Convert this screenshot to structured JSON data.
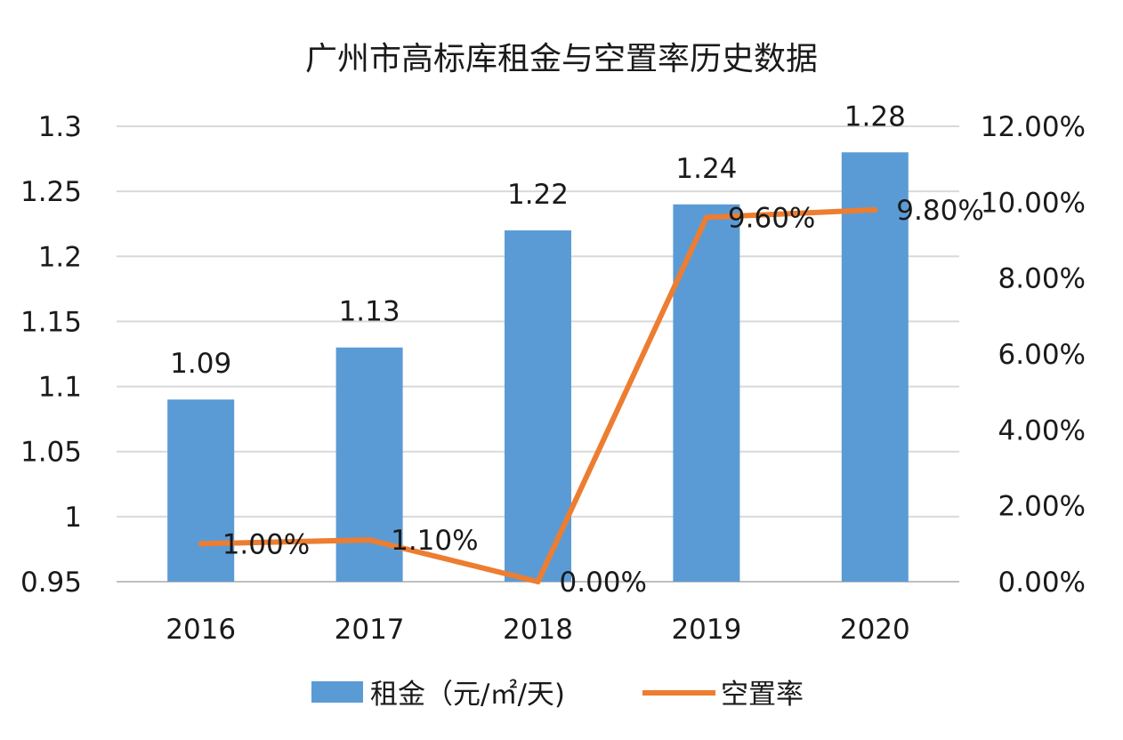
{
  "chart_data": {
    "type": "bar+line",
    "title": "广州市高标库租金与空置率历史数据",
    "categories": [
      "2016",
      "2017",
      "2018",
      "2019",
      "2020"
    ],
    "series": [
      {
        "name": "租金（元/㎡/天)",
        "type": "bar",
        "axis": "left",
        "values": [
          1.09,
          1.13,
          1.22,
          1.24,
          1.28
        ],
        "labels": [
          "1.09",
          "1.13",
          "1.22",
          "1.24",
          "1.28"
        ],
        "color": "#5b9bd5"
      },
      {
        "name": "空置率",
        "type": "line",
        "axis": "right",
        "values": [
          0.01,
          0.011,
          0.0,
          0.096,
          0.098
        ],
        "labels": [
          "1.00%",
          "1.10%",
          "0.00%",
          "9.60%",
          "9.80%"
        ],
        "color": "#ed7d31"
      }
    ],
    "y_left": {
      "range": [
        0.95,
        1.3
      ],
      "ticks": [
        0.95,
        1,
        1.05,
        1.1,
        1.15,
        1.2,
        1.25,
        1.3
      ],
      "tick_labels": [
        "0.95",
        "1",
        "1.05",
        "1.1",
        "1.15",
        "1.2",
        "1.25",
        "1.3"
      ]
    },
    "y_right": {
      "range": [
        0,
        0.12
      ],
      "ticks": [
        0,
        0.02,
        0.04,
        0.06,
        0.08,
        0.1,
        0.12
      ],
      "tick_labels": [
        "0.00%",
        "2.00%",
        "4.00%",
        "6.00%",
        "8.00%",
        "10.00%",
        "12.00%"
      ]
    },
    "grid": true,
    "legend_position": "bottom",
    "gridline_color": "#d9d9d9"
  }
}
